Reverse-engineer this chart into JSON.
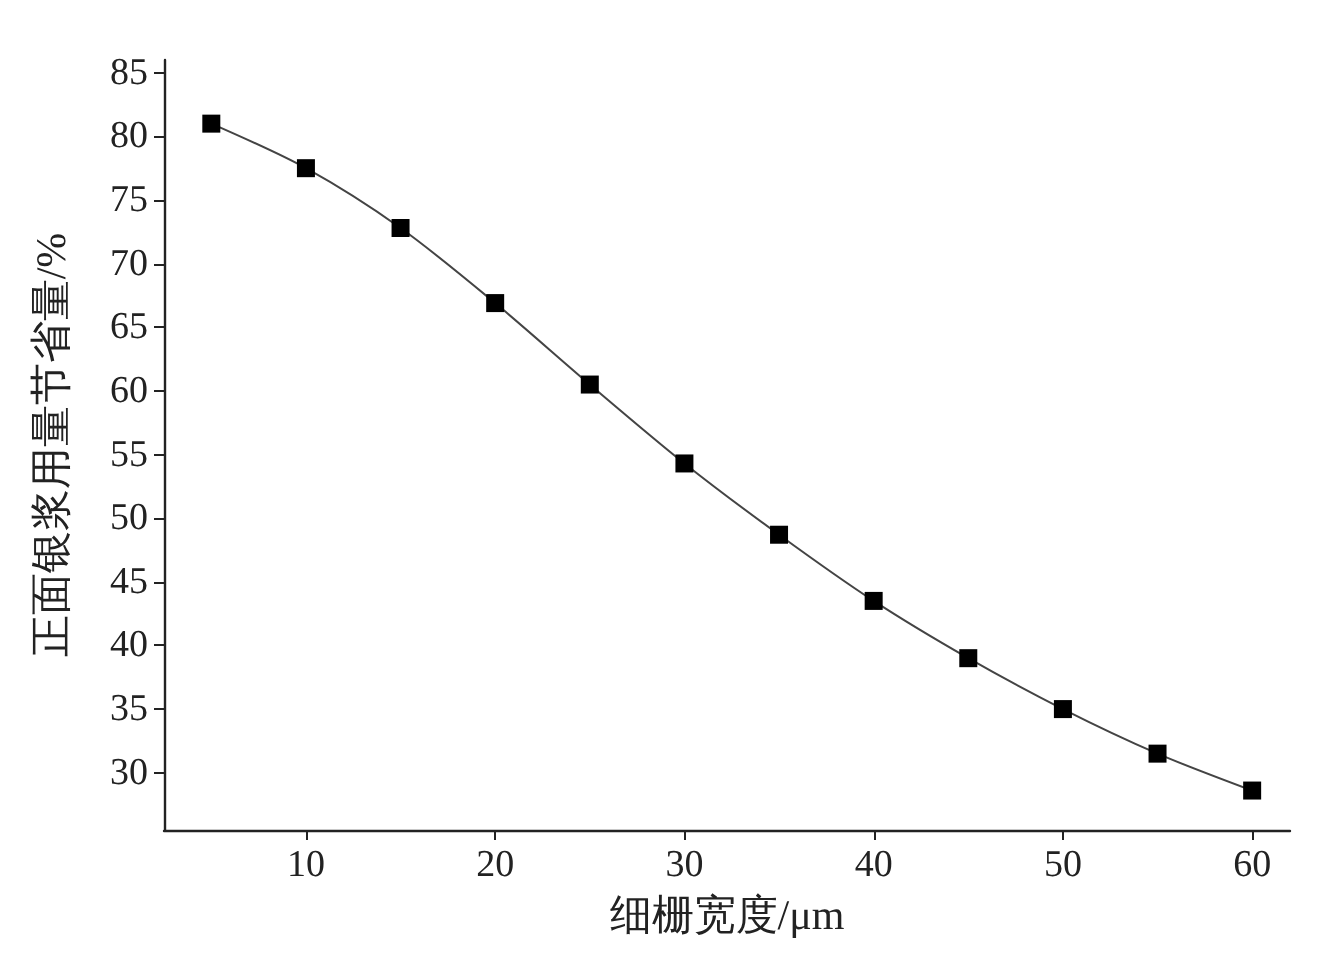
{
  "chart_data": {
    "type": "line",
    "xlabel": "细栅宽度/μm",
    "ylabel": "正面银浆用量节省量/%",
    "x": [
      5,
      10,
      15,
      20,
      25,
      30,
      35,
      40,
      45,
      50,
      55,
      60
    ],
    "series": [
      {
        "color": "#000000",
        "values": [
          81,
          77.5,
          72.8,
          66.9,
          60.5,
          54.3,
          48.7,
          43.5,
          39,
          35,
          31.5,
          28.6
        ]
      }
    ],
    "xlim": [
      2.5,
      62
    ],
    "xticks": [
      10,
      20,
      30,
      40,
      50,
      60
    ],
    "ylim": [
      25.5,
      86
    ],
    "yticks": [
      30,
      35,
      40,
      45,
      50,
      55,
      60,
      65,
      70,
      75,
      80,
      85
    ],
    "marker": "square",
    "line_style": "solid"
  }
}
